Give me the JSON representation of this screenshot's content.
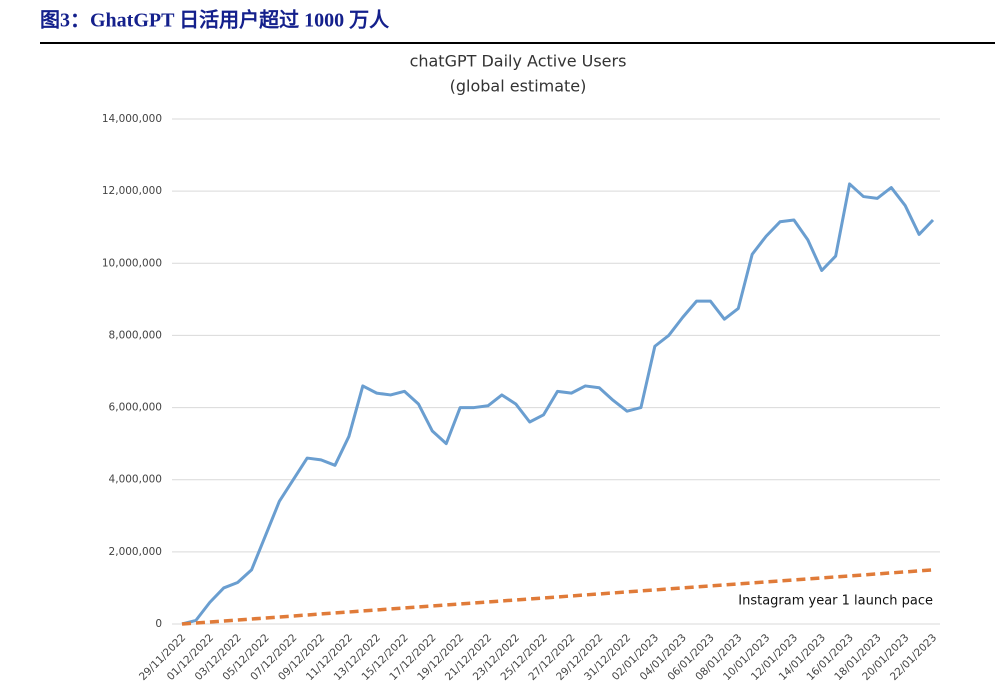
{
  "header": {
    "title": "图3：GhatGPT 日活用户超过 1000 万人"
  },
  "chart_data": {
    "type": "line",
    "title": "chatGPT Daily Active Users",
    "subtitle": "(global estimate)",
    "categories": [
      "29/11/2022",
      null,
      "01/12/2022",
      null,
      "03/12/2022",
      null,
      "05/12/2022",
      null,
      "07/12/2022",
      null,
      "09/12/2022",
      null,
      "11/12/2022",
      null,
      "13/12/2022",
      null,
      "15/12/2022",
      null,
      "17/12/2022",
      null,
      "19/12/2022",
      null,
      "21/12/2022",
      null,
      "23/12/2022",
      null,
      "25/12/2022",
      null,
      "27/12/2022",
      null,
      "29/12/2022",
      null,
      "31/12/2022",
      null,
      "02/01/2023",
      null,
      "04/01/2023",
      null,
      "06/01/2023",
      null,
      "08/01/2023",
      null,
      "10/01/2023",
      null,
      "12/01/2023",
      null,
      "14/01/2023",
      null,
      "16/01/2023",
      null,
      "18/01/2023",
      null,
      "20/01/2023",
      null,
      "22/01/2023"
    ],
    "series": [
      {
        "color": "#6a9ed0",
        "values": [
          0,
          100000,
          600000,
          1000000,
          1150000,
          1500000,
          2450000,
          3400000,
          4000000,
          4600000,
          4550000,
          4400000,
          5200000,
          6600000,
          6400000,
          6350000,
          6450000,
          6100000,
          5350000,
          5000000,
          6000000,
          6000000,
          6050000,
          6350000,
          6100000,
          5600000,
          5800000,
          6450000,
          6400000,
          6600000,
          6550000,
          6200000,
          5900000,
          6000000,
          7700000,
          8000000,
          8500000,
          8950000,
          8950000,
          8450000,
          8750000,
          10250000,
          10750000,
          11150000,
          11200000,
          10650000,
          9800000,
          10200000,
          12200000,
          11850000,
          11800000,
          12100000,
          11600000,
          10800000,
          11200000
        ]
      },
      {
        "name": "Instagram year 1 launch pace",
        "color": "#e07b39",
        "dashed": true,
        "values": [
          0,
          28000,
          56000,
          83000,
          111000,
          139000,
          167000,
          194000,
          222000,
          250000,
          278000,
          306000,
          333000,
          361000,
          389000,
          417000,
          444000,
          472000,
          500000,
          528000,
          556000,
          583000,
          611000,
          639000,
          667000,
          694000,
          722000,
          750000,
          778000,
          806000,
          833000,
          861000,
          889000,
          917000,
          944000,
          972000,
          1000000,
          1028000,
          1056000,
          1083000,
          1111000,
          1139000,
          1167000,
          1194000,
          1222000,
          1250000,
          1278000,
          1306000,
          1333000,
          1361000,
          1389000,
          1417000,
          1444000,
          1472000,
          1500000
        ]
      }
    ],
    "ylim": [
      0,
      14000000
    ],
    "yticks": [
      0,
      {
        "value": 2000000,
        "label": "2,000,000"
      },
      {
        "value": 4000000,
        "label": "4,000,000"
      },
      {
        "value": 6000000,
        "label": "6,000,000"
      },
      {
        "value": 8000000,
        "label": "8,000,000"
      },
      {
        "value": 10000000,
        "label": "10,000,000"
      },
      {
        "value": 12000000,
        "label": "12,000,000"
      },
      {
        "value": 14000000,
        "label": "14,000,000"
      }
    ],
    "grid": true
  }
}
